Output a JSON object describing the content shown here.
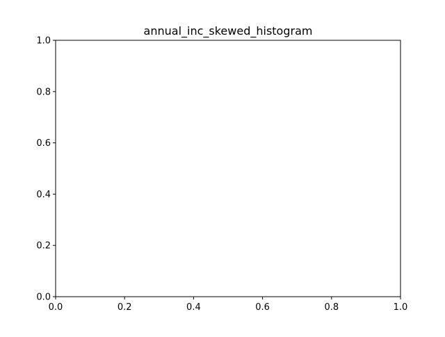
{
  "chart_data": {
    "type": "bar",
    "title": "annual_inc_skewed_histogram",
    "xlabel": "",
    "ylabel": "",
    "xlim": [
      0.0,
      1.0
    ],
    "ylim": [
      0.0,
      1.0
    ],
    "xticks": [
      0.0,
      0.2,
      0.4,
      0.6,
      0.8,
      1.0
    ],
    "yticks": [
      0.0,
      0.2,
      0.4,
      0.6,
      0.8,
      1.0
    ],
    "xtick_labels": [
      "0.0",
      "0.2",
      "0.4",
      "0.6",
      "0.8",
      "1.0"
    ],
    "ytick_labels": [
      "0.0",
      "0.2",
      "0.4",
      "0.6",
      "0.8",
      "1.0"
    ],
    "series": [],
    "grid": false,
    "legend": "none"
  }
}
